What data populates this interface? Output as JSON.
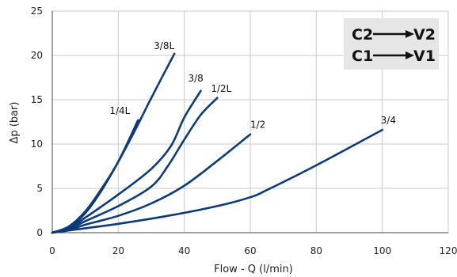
{
  "chart_data": {
    "type": "line",
    "title": "",
    "xlabel": "Flow - Q (l/min)",
    "ylabel": "Δp (bar)",
    "xlim": [
      0,
      120
    ],
    "ylim": [
      0,
      25
    ],
    "xticks": [
      "0",
      "20",
      "40",
      "60",
      "80",
      "100",
      "120"
    ],
    "yticks": [
      "0",
      "5",
      "10",
      "15",
      "20",
      "25"
    ],
    "grid": true,
    "series_color": "#0d3a7a",
    "series": [
      {
        "name": "1/4L",
        "points": [
          [
            0,
            0
          ],
          [
            5,
            0.7
          ],
          [
            10,
            2.4
          ],
          [
            15,
            5
          ],
          [
            20,
            8
          ],
          [
            26,
            12.7
          ]
        ]
      },
      {
        "name": "3/8L",
        "points": [
          [
            0,
            0
          ],
          [
            5,
            0.6
          ],
          [
            10,
            2.2
          ],
          [
            15,
            4.8
          ],
          [
            20,
            8
          ],
          [
            25,
            11.5
          ],
          [
            30,
            15.2
          ],
          [
            37,
            20.2
          ]
        ]
      },
      {
        "name": "3/8",
        "points": [
          [
            0,
            0
          ],
          [
            5,
            0.5
          ],
          [
            10,
            1.7
          ],
          [
            20,
            4.3
          ],
          [
            30,
            7.2
          ],
          [
            36,
            9.8
          ],
          [
            40,
            13
          ],
          [
            45,
            16
          ]
        ]
      },
      {
        "name": "1/2L",
        "points": [
          [
            0,
            0
          ],
          [
            5,
            0.4
          ],
          [
            10,
            1.3
          ],
          [
            20,
            3
          ],
          [
            30,
            5.2
          ],
          [
            35,
            7.5
          ],
          [
            40,
            10.5
          ],
          [
            45,
            13.3
          ],
          [
            50,
            15.2
          ]
        ]
      },
      {
        "name": "1/2",
        "points": [
          [
            0,
            0
          ],
          [
            5,
            0.3
          ],
          [
            10,
            0.9
          ],
          [
            20,
            1.9
          ],
          [
            30,
            3.3
          ],
          [
            40,
            5.3
          ],
          [
            50,
            8.1
          ],
          [
            60,
            11.1
          ]
        ]
      },
      {
        "name": "3/4",
        "points": [
          [
            0,
            0
          ],
          [
            10,
            0.5
          ],
          [
            20,
            1
          ],
          [
            35,
            1.9
          ],
          [
            50,
            3
          ],
          [
            60,
            4
          ],
          [
            65,
            4.8
          ],
          [
            80,
            7.6
          ],
          [
            100,
            11.6
          ]
        ]
      }
    ]
  },
  "legend": {
    "row1_from": "C2",
    "row1_to": "V2",
    "row2_from": "C1",
    "row2_to": "V1"
  }
}
